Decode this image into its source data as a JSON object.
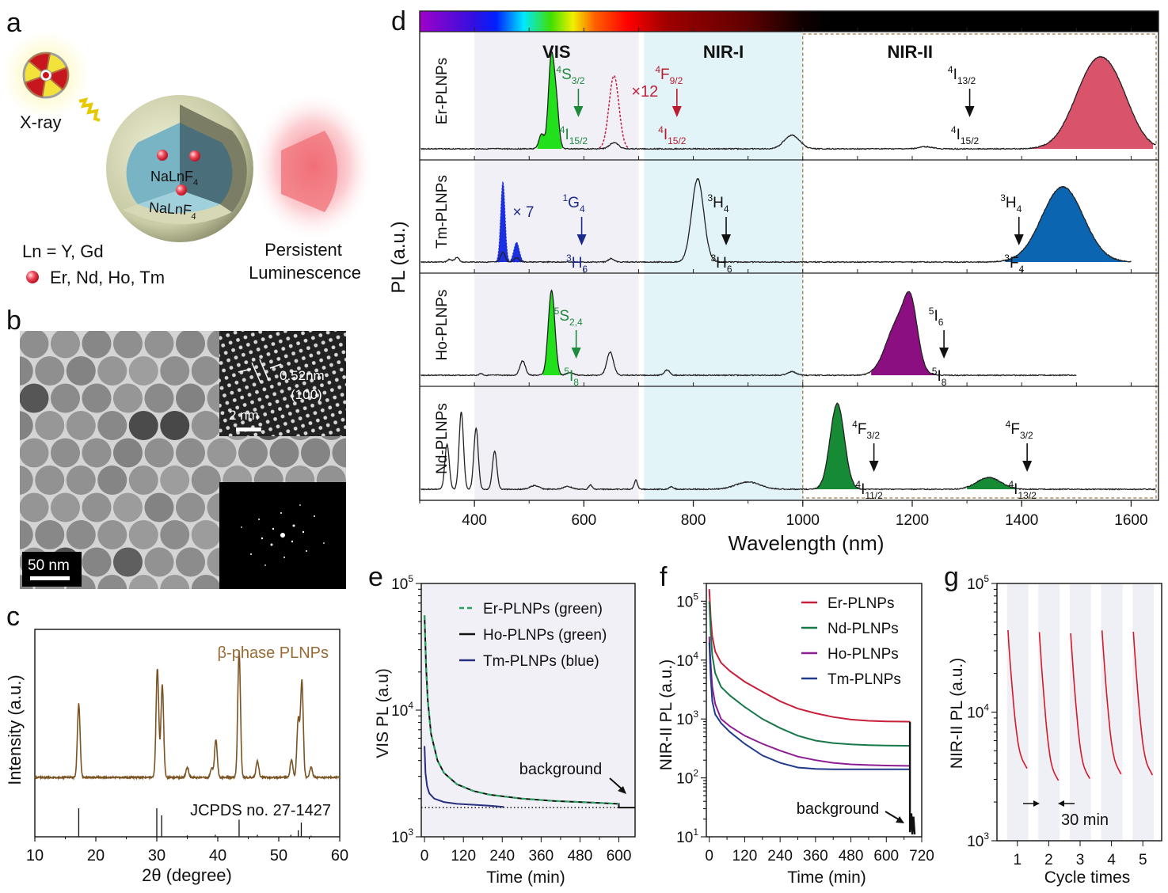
{
  "figure": {
    "panel_letters": {
      "a": "a",
      "b": "b",
      "c": "c",
      "d": "d",
      "e": "e",
      "f": "f",
      "g": "g"
    }
  },
  "panel_a": {
    "xray_label": "X-ray",
    "core_label": "NaLnF",
    "core_sub": "4",
    "shell_label": "NaLnF",
    "shell_sub": "4",
    "ln_line": "Ln = Y, Gd",
    "dopant_line": "Er, Nd, Ho, Tm",
    "persistent_line1": "Persistent",
    "persistent_line2": "Luminescence",
    "colors": {
      "dopant": "#e8303f",
      "glow": "#f0606a",
      "shell": "#d4d6b4",
      "core": "#6fa9b8"
    }
  },
  "panel_b": {
    "scalebar_label": "50 nm",
    "hrtem_scalebar_label": "2 nm",
    "lattice_spacing": "0.52nm",
    "lattice_plane": "(100)"
  },
  "chart_data": [
    {
      "id": "c",
      "type": "line",
      "title": "",
      "annotation": "β-phase PLNPs",
      "reference_label": "JCPDS no. 27-1427",
      "xlabel": "2θ (degree)",
      "ylabel": "Intensity (a.u.)",
      "xlim": [
        10,
        60
      ],
      "xticks": [
        "10",
        "20",
        "30",
        "40",
        "50",
        "60"
      ],
      "xtick_values": [
        10,
        20,
        30,
        40,
        50,
        60
      ],
      "color": "#7b5424",
      "peaks": [
        {
          "x": 17.2,
          "h": 0.58
        },
        {
          "x": 30.1,
          "h": 0.86
        },
        {
          "x": 30.9,
          "h": 0.73
        },
        {
          "x": 35.0,
          "h": 0.08
        },
        {
          "x": 39.0,
          "h": 0.07
        },
        {
          "x": 39.7,
          "h": 0.3
        },
        {
          "x": 43.5,
          "h": 1.0
        },
        {
          "x": 46.5,
          "h": 0.13
        },
        {
          "x": 52.1,
          "h": 0.14
        },
        {
          "x": 53.2,
          "h": 0.46
        },
        {
          "x": 53.8,
          "h": 0.76
        },
        {
          "x": 55.3,
          "h": 0.08
        }
      ],
      "reference_lines": [
        {
          "x": 17.2,
          "h": 1.0
        },
        {
          "x": 30.0,
          "h": 1.0
        },
        {
          "x": 30.8,
          "h": 0.75
        },
        {
          "x": 35.0,
          "h": 0.05
        },
        {
          "x": 39.6,
          "h": 0.07
        },
        {
          "x": 43.5,
          "h": 0.6
        },
        {
          "x": 46.5,
          "h": 0.07
        },
        {
          "x": 52.0,
          "h": 0.07
        },
        {
          "x": 53.2,
          "h": 0.23
        },
        {
          "x": 53.7,
          "h": 0.5
        },
        {
          "x": 55.3,
          "h": 0.04
        }
      ]
    },
    {
      "id": "d",
      "type": "area",
      "xlabel": "Wavelength (nm)",
      "ylabel": "PL (a.u.)",
      "xlim": [
        300,
        1650
      ],
      "xticks": [
        "400",
        "600",
        "800",
        "1000",
        "1200",
        "1400",
        "1600"
      ],
      "xtick_values": [
        400,
        600,
        800,
        1000,
        1200,
        1400,
        1600
      ],
      "regions": [
        {
          "name": "VIS",
          "from": 400,
          "to": 700,
          "color": "#f1f0f7"
        },
        {
          "name": "NIR-I",
          "from": 710,
          "to": 1000,
          "color": "#e2f4f8"
        },
        {
          "name": "NIR-II",
          "from": 1000,
          "to": 1650,
          "color": "#ffffff"
        }
      ],
      "spectrum_bar_stops": [
        {
          "nm": 300,
          "color": "#a000c8"
        },
        {
          "nm": 400,
          "color": "#3010e0"
        },
        {
          "nm": 440,
          "color": "#0020ff"
        },
        {
          "nm": 490,
          "color": "#00e8ff"
        },
        {
          "nm": 540,
          "color": "#40e000"
        },
        {
          "nm": 580,
          "color": "#f0f000"
        },
        {
          "nm": 620,
          "color": "#ff6000"
        },
        {
          "nm": 680,
          "color": "#ff0000"
        },
        {
          "nm": 750,
          "color": "#a00000"
        },
        {
          "nm": 900,
          "color": "#600000"
        },
        {
          "nm": 1000,
          "color": "#100000"
        },
        {
          "nm": 1050,
          "color": "#000000"
        }
      ],
      "series": [
        {
          "name": "Er-PLNPs",
          "fill_regions": [
            {
              "from": 515,
              "to": 560,
              "color": "#22e01c"
            },
            {
              "from": 1320,
              "to": 1640,
              "color": "#d9536a"
            }
          ],
          "peaks": [
            {
              "x": 523,
              "h": 0.14,
              "w": 5
            },
            {
              "x": 540,
              "h": 0.82,
              "w": 5
            },
            {
              "x": 549,
              "h": 0.45,
              "w": 5
            },
            {
              "x": 655,
              "h": 0.06,
              "w": 8
            },
            {
              "x": 980,
              "h": 0.13,
              "w": 14
            },
            {
              "x": 1225,
              "h": 0.02,
              "w": 12
            },
            {
              "x": 1535,
              "h": 0.78,
              "w": 38
            },
            {
              "x": 1580,
              "h": 0.25,
              "w": 30
            }
          ],
          "scaled_peak": {
            "x": 655,
            "h": 0.7,
            "w": 9,
            "factor_label": "×12",
            "color": "#c0203c"
          },
          "transitions": [
            {
              "from": "4S",
              "from_sub": "3/2",
              "to": "4I",
              "to_sub": "15/2",
              "x": 590,
              "color": "#1d8a3c"
            },
            {
              "from": "4F",
              "from_sub": "9/2",
              "to": "4I",
              "to_sub": "15/2",
              "x": 770,
              "color": "#b81c2e"
            },
            {
              "from": "4I",
              "from_sub": "13/2",
              "to": "4I",
              "to_sub": "15/2",
              "x": 1305,
              "color": "#111111"
            }
          ]
        },
        {
          "name": "Tm-PLNPs",
          "fill_regions": [
            {
              "from": 440,
              "to": 495,
              "color": "#1c2fe0"
            },
            {
              "from": 1370,
              "to": 1600,
              "color": "#0b65b0"
            }
          ],
          "peaks": [
            {
              "x": 355,
              "h": 0.03,
              "w": 4
            },
            {
              "x": 368,
              "h": 0.05,
              "w": 4
            },
            {
              "x": 452,
              "h": 0.11,
              "w": 4
            },
            {
              "x": 477,
              "h": 0.05,
              "w": 5
            },
            {
              "x": 650,
              "h": 0.04,
              "w": 5
            },
            {
              "x": 808,
              "h": 0.93,
              "w": 11
            },
            {
              "x": 1475,
              "h": 0.84,
              "w": 38
            }
          ],
          "scaled_peaks": [
            {
              "x": 452,
              "h": 0.9,
              "w": 4
            },
            {
              "x": 477,
              "h": 0.22,
              "w": 5
            }
          ],
          "scaled_label": "× 7",
          "transitions": [
            {
              "from": "1G",
              "from_sub": "4",
              "to": "3H",
              "to_sub": "6",
              "x": 596,
              "color": "#1c2a8c"
            },
            {
              "from": "3H",
              "from_sub": "4",
              "to": "3H",
              "to_sub": "6",
              "x": 860,
              "color": "#111111"
            },
            {
              "from": "3H",
              "from_sub": "4",
              "to": "3F",
              "to_sub": "4",
              "x": 1395,
              "color": "#111111"
            }
          ],
          "end_nm": 1600
        },
        {
          "name": "Ho-PLNPs",
          "fill_regions": [
            {
              "from": 525,
              "to": 560,
              "color": "#22e01c"
            },
            {
              "from": 1125,
              "to": 1260,
              "color": "#8c0f82"
            }
          ],
          "peaks": [
            {
              "x": 412,
              "h": 0.02,
              "w": 3
            },
            {
              "x": 488,
              "h": 0.16,
              "w": 5
            },
            {
              "x": 541,
              "h": 0.95,
              "w": 6
            },
            {
              "x": 575,
              "h": 0.03,
              "w": 6
            },
            {
              "x": 648,
              "h": 0.26,
              "w": 6
            },
            {
              "x": 752,
              "h": 0.06,
              "w": 5
            },
            {
              "x": 980,
              "h": 0.04,
              "w": 8
            },
            {
              "x": 1175,
              "h": 0.6,
              "w": 22
            },
            {
              "x": 1198,
              "h": 0.55,
              "w": 12
            }
          ],
          "transitions": [
            {
              "from": "5S",
              "from_sub": "2,4",
              "to": "5I",
              "to_sub": "8",
              "x": 586,
              "color": "#1d8a3c"
            },
            {
              "from": "5I",
              "from_sub": "6",
              "to": "5I",
              "to_sub": "8",
              "x": 1258,
              "color": "#111111"
            }
          ],
          "end_nm": 1500
        },
        {
          "name": "Nd-PLNPs",
          "fill_regions": [
            {
              "from": 1020,
              "to": 1110,
              "color": "#178a36"
            },
            {
              "from": 1300,
              "to": 1390,
              "color": "#178a36"
            }
          ],
          "peaks": [
            {
              "x": 350,
              "h": 0.5,
              "w": 4
            },
            {
              "x": 376,
              "h": 0.86,
              "w": 4
            },
            {
              "x": 403,
              "h": 0.68,
              "w": 4
            },
            {
              "x": 437,
              "h": 0.42,
              "w": 4
            },
            {
              "x": 510,
              "h": 0.04,
              "w": 8
            },
            {
              "x": 570,
              "h": 0.03,
              "w": 8
            },
            {
              "x": 612,
              "h": 0.05,
              "w": 3
            },
            {
              "x": 695,
              "h": 0.1,
              "w": 3
            },
            {
              "x": 760,
              "h": 0.03,
              "w": 4
            },
            {
              "x": 900,
              "h": 0.08,
              "w": 22
            },
            {
              "x": 1063,
              "h": 0.95,
              "w": 13
            },
            {
              "x": 1340,
              "h": 0.13,
              "w": 22
            }
          ],
          "transitions": [
            {
              "from": "4F",
              "from_sub": "3/2",
              "to": "4I",
              "to_sub": "11/2",
              "x": 1130,
              "color": "#111111"
            },
            {
              "from": "4F",
              "from_sub": "3/2",
              "to": "4I",
              "to_sub": "13/2",
              "x": 1410,
              "color": "#111111"
            }
          ]
        }
      ]
    },
    {
      "id": "e",
      "type": "line",
      "xlabel": "Time (min)",
      "ylabel": "VIS PL (a.u)",
      "yscale": "log",
      "ylim": [
        1000,
        100000
      ],
      "yticks": [
        {
          "base": "10",
          "exp": "3"
        },
        {
          "base": "10",
          "exp": "4"
        },
        {
          "base": "10",
          "exp": "5"
        }
      ],
      "xlim": [
        -10,
        650
      ],
      "xticks": [
        "0",
        "120",
        "240",
        "360",
        "480",
        "600"
      ],
      "xtick_values": [
        0,
        120,
        240,
        360,
        480,
        600
      ],
      "annotation": "background",
      "background_level": 1700,
      "series": [
        {
          "name": "Er-PLNPs (green)",
          "color": "#2aa260",
          "dash": true,
          "x": [
            0,
            5,
            10,
            20,
            40,
            60,
            100,
            150,
            200,
            300,
            400,
            500,
            600
          ],
          "y": [
            56000,
            22000,
            12000,
            6500,
            4000,
            3200,
            2600,
            2300,
            2150,
            2000,
            1920,
            1870,
            1820
          ]
        },
        {
          "name": "Ho-PLNPs (green)",
          "color": "#111111",
          "dash": false,
          "x": [
            0,
            5,
            10,
            20,
            40,
            60,
            100,
            150,
            200,
            300,
            400,
            500,
            600,
            600,
            650
          ],
          "y": [
            56000,
            22000,
            12000,
            6500,
            4000,
            3200,
            2600,
            2300,
            2150,
            2000,
            1920,
            1870,
            1820,
            1700,
            1700
          ]
        },
        {
          "name": "Tm-PLNPs (blue)",
          "color": "#27307f",
          "dash": false,
          "x": [
            0,
            3,
            8,
            15,
            30,
            60,
            100,
            150,
            200,
            245
          ],
          "y": [
            5200,
            3200,
            2500,
            2200,
            2000,
            1880,
            1820,
            1790,
            1760,
            1720
          ]
        }
      ]
    },
    {
      "id": "f",
      "type": "line",
      "xlabel": "Time (min)",
      "ylabel": "NIR-II PL (a.u.)",
      "yscale": "log",
      "ylim": [
        10,
        200000
      ],
      "yticks": [
        {
          "base": "10",
          "exp": "1"
        },
        {
          "base": "10",
          "exp": "2"
        },
        {
          "base": "10",
          "exp": "3"
        },
        {
          "base": "10",
          "exp": "4"
        },
        {
          "base": "10",
          "exp": "5"
        }
      ],
      "xlim": [
        -10,
        720
      ],
      "xticks": [
        "0",
        "120",
        "240",
        "360",
        "480",
        "600",
        "720"
      ],
      "xtick_values": [
        0,
        120,
        240,
        360,
        480,
        600,
        720
      ],
      "annotation": "background",
      "series": [
        {
          "name": "Er-PLNPs",
          "color": "#c8203a",
          "x": [
            0,
            5,
            10,
            20,
            40,
            70,
            120,
            180,
            240,
            300,
            360,
            420,
            480,
            540,
            600,
            680
          ],
          "y": [
            160000,
            50000,
            25000,
            14000,
            9000,
            6500,
            4300,
            2900,
            2000,
            1500,
            1250,
            1080,
            980,
            930,
            910,
            900
          ]
        },
        {
          "name": "Nd-PLNPs",
          "color": "#17784a",
          "x": [
            0,
            5,
            10,
            20,
            40,
            70,
            120,
            180,
            240,
            300,
            360,
            420,
            480,
            540,
            600,
            680
          ],
          "y": [
            100000,
            28000,
            12000,
            6000,
            3500,
            2500,
            1600,
            1000,
            700,
            520,
            430,
            390,
            370,
            360,
            355,
            350
          ]
        },
        {
          "name": "Ho-PLNPs",
          "color": "#8e1c94",
          "x": [
            0,
            5,
            10,
            20,
            40,
            70,
            120,
            180,
            240,
            300,
            360,
            420,
            480,
            540,
            600,
            680
          ],
          "y": [
            25000,
            8000,
            3500,
            1800,
            1000,
            750,
            520,
            380,
            290,
            230,
            200,
            180,
            170,
            165,
            162,
            160
          ]
        },
        {
          "name": "Tm-PLNPs",
          "color": "#203a8c",
          "x": [
            0,
            5,
            10,
            20,
            40,
            70,
            120,
            180,
            240,
            300,
            360,
            420,
            480,
            540,
            600,
            680
          ],
          "y": [
            20000,
            5000,
            2000,
            1200,
            850,
            600,
            380,
            240,
            180,
            150,
            142,
            140,
            140,
            140,
            140,
            140
          ]
        }
      ]
    },
    {
      "id": "g",
      "type": "line",
      "xlabel": "Cycle times",
      "ylabel": "NIR-II PL (a.u.)",
      "yscale": "log",
      "ylim": [
        1000,
        100000
      ],
      "yticks": [
        {
          "base": "10",
          "exp": "3"
        },
        {
          "base": "10",
          "exp": "4"
        },
        {
          "base": "10",
          "exp": "5"
        }
      ],
      "xticks": [
        "1",
        "2",
        "3",
        "4",
        "5"
      ],
      "xtick_values": [
        1,
        2,
        3,
        4,
        5
      ],
      "annotation": "30 min",
      "color": "#d31a2a",
      "cycles": [
        {
          "x0": 0.7,
          "x1": 1.35,
          "start": 41000,
          "end": 3600
        },
        {
          "x0": 1.7,
          "x1": 2.35,
          "start": 40000,
          "end": 2900
        },
        {
          "x0": 2.7,
          "x1": 3.35,
          "start": 39000,
          "end": 3000
        },
        {
          "x0": 3.7,
          "x1": 4.35,
          "start": 41000,
          "end": 3250
        },
        {
          "x0": 4.7,
          "x1": 5.35,
          "start": 40000,
          "end": 3200
        }
      ]
    }
  ]
}
